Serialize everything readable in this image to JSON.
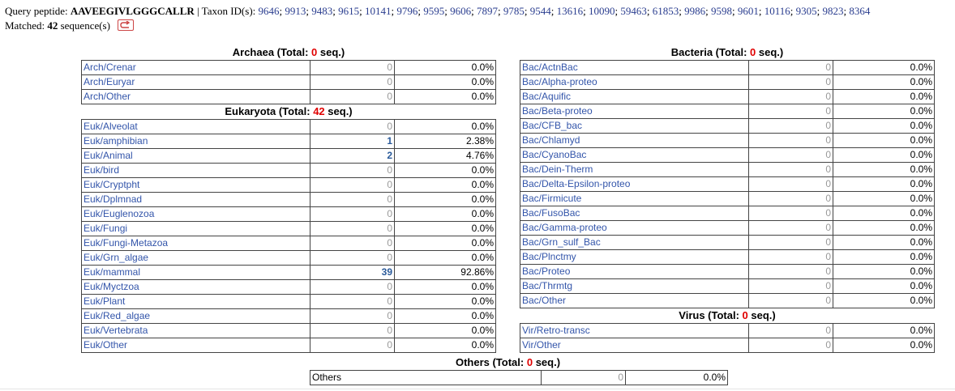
{
  "header": {
    "query_label": "Query peptide:",
    "peptide": "AAVEEGIVLGGGCALLR",
    "separator": "|",
    "taxon_label": "Taxon ID(s):",
    "taxon_ids": [
      "9646",
      "9913",
      "9483",
      "9615",
      "10141",
      "9796",
      "9595",
      "9606",
      "7897",
      "9785",
      "9544",
      "13616",
      "10090",
      "59463",
      "61853",
      "9986",
      "9598",
      "9601",
      "10116",
      "9305",
      "9823",
      "8364"
    ],
    "matched_label": "Matched:",
    "matched_count": "42",
    "matched_suffix": "sequence(s)",
    "back_icon": "return-arrow-icon"
  },
  "sections": {
    "archaea": {
      "title_prefix": "Archaea (Total:",
      "total": "0",
      "title_suffix": "seq.)",
      "rows": [
        {
          "name": "Arch/Crenar",
          "count": "0",
          "pct": "0.0%"
        },
        {
          "name": "Arch/Euryar",
          "count": "0",
          "pct": "0.0%"
        },
        {
          "name": "Arch/Other",
          "count": "0",
          "pct": "0.0%"
        }
      ]
    },
    "eukaryota": {
      "title_prefix": "Eukaryota (Total:",
      "total": "42",
      "title_suffix": "seq.)",
      "rows": [
        {
          "name": "Euk/Alveolat",
          "count": "0",
          "pct": "0.0%"
        },
        {
          "name": "Euk/amphibian",
          "count": "1",
          "pct": "2.38%"
        },
        {
          "name": "Euk/Animal",
          "count": "2",
          "pct": "4.76%"
        },
        {
          "name": "Euk/bird",
          "count": "0",
          "pct": "0.0%"
        },
        {
          "name": "Euk/Cryptpht",
          "count": "0",
          "pct": "0.0%"
        },
        {
          "name": "Euk/Dplmnad",
          "count": "0",
          "pct": "0.0%"
        },
        {
          "name": "Euk/Euglenozoa",
          "count": "0",
          "pct": "0.0%"
        },
        {
          "name": "Euk/Fungi",
          "count": "0",
          "pct": "0.0%"
        },
        {
          "name": "Euk/Fungi-Metazoa",
          "count": "0",
          "pct": "0.0%"
        },
        {
          "name": "Euk/Grn_algae",
          "count": "0",
          "pct": "0.0%"
        },
        {
          "name": "Euk/mammal",
          "count": "39",
          "pct": "92.86%"
        },
        {
          "name": "Euk/Myctzoa",
          "count": "0",
          "pct": "0.0%"
        },
        {
          "name": "Euk/Plant",
          "count": "0",
          "pct": "0.0%"
        },
        {
          "name": "Euk/Red_algae",
          "count": "0",
          "pct": "0.0%"
        },
        {
          "name": "Euk/Vertebrata",
          "count": "0",
          "pct": "0.0%"
        },
        {
          "name": "Euk/Other",
          "count": "0",
          "pct": "0.0%"
        }
      ]
    },
    "bacteria": {
      "title_prefix": "Bacteria (Total:",
      "total": "0",
      "title_suffix": "seq.)",
      "rows": [
        {
          "name": "Bac/ActnBac",
          "count": "0",
          "pct": "0.0%"
        },
        {
          "name": "Bac/Alpha-proteo",
          "count": "0",
          "pct": "0.0%"
        },
        {
          "name": "Bac/Aquific",
          "count": "0",
          "pct": "0.0%"
        },
        {
          "name": "Bac/Beta-proteo",
          "count": "0",
          "pct": "0.0%"
        },
        {
          "name": "Bac/CFB_bac",
          "count": "0",
          "pct": "0.0%"
        },
        {
          "name": "Bac/Chlamyd",
          "count": "0",
          "pct": "0.0%"
        },
        {
          "name": "Bac/CyanoBac",
          "count": "0",
          "pct": "0.0%"
        },
        {
          "name": "Bac/Dein-Therm",
          "count": "0",
          "pct": "0.0%"
        },
        {
          "name": "Bac/Delta-Epsilon-proteo",
          "count": "0",
          "pct": "0.0%"
        },
        {
          "name": "Bac/Firmicute",
          "count": "0",
          "pct": "0.0%"
        },
        {
          "name": "Bac/FusoBac",
          "count": "0",
          "pct": "0.0%"
        },
        {
          "name": "Bac/Gamma-proteo",
          "count": "0",
          "pct": "0.0%"
        },
        {
          "name": "Bac/Grn_sulf_Bac",
          "count": "0",
          "pct": "0.0%"
        },
        {
          "name": "Bac/Plnctmy",
          "count": "0",
          "pct": "0.0%"
        },
        {
          "name": "Bac/Proteo",
          "count": "0",
          "pct": "0.0%"
        },
        {
          "name": "Bac/Thrmtg",
          "count": "0",
          "pct": "0.0%"
        },
        {
          "name": "Bac/Other",
          "count": "0",
          "pct": "0.0%"
        }
      ]
    },
    "virus": {
      "title_prefix": "Virus (Total:",
      "total": "0",
      "title_suffix": "seq.)",
      "rows": [
        {
          "name": "Vir/Retro-transc",
          "count": "0",
          "pct": "0.0%"
        },
        {
          "name": "Vir/Other",
          "count": "0",
          "pct": "0.0%"
        }
      ]
    },
    "others": {
      "title_prefix": "Others (Total:",
      "total": "0",
      "title_suffix": "seq.)",
      "rows": [
        {
          "name": "Others",
          "count": "0",
          "pct": "0.0%"
        }
      ]
    }
  },
  "colors": {
    "link": "#3355aa",
    "zero_total": "#e00000",
    "nonzero_count": "#2a5a9a",
    "zero_count": "#999999"
  }
}
